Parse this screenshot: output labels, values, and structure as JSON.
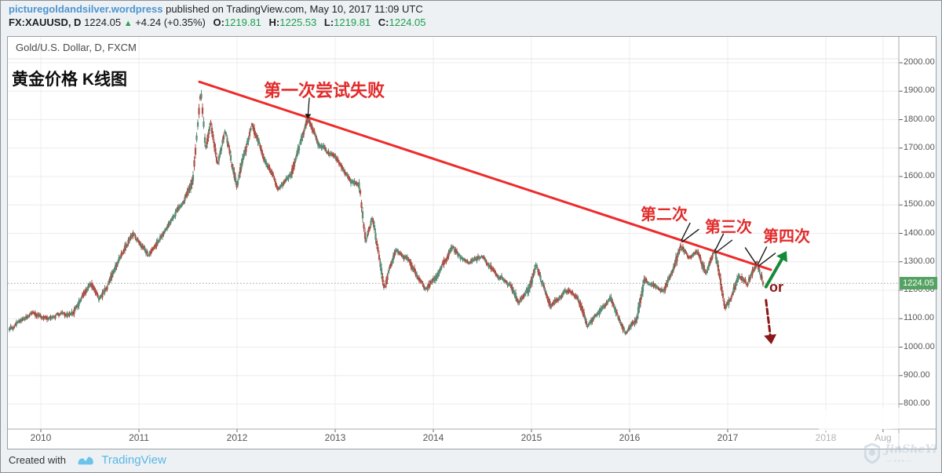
{
  "page": {
    "bg": "#edf1f4",
    "border": "#8a9097"
  },
  "header": {
    "source_link": "picturegoldandsilver.wordpress",
    "published_text": "published on TradingView.com, May 10, 2017 11:09 UTC",
    "symbol": "FX:XAUUSD, D",
    "last_price": "1224.05",
    "up_triangle": "▲",
    "change_text": "+4.24 (+0.35%)",
    "ohlc": [
      {
        "label": "O:",
        "value": "1219.81"
      },
      {
        "label": "H:",
        "value": "1225.53"
      },
      {
        "label": "L:",
        "value": "1219.81"
      },
      {
        "label": "C:",
        "value": "1224.05"
      }
    ]
  },
  "legend": "Gold/U.S. Dollar, D, FXCM",
  "chart_title": "黄金价格 K线图",
  "footer": {
    "created_with": "Created with",
    "brand": "TradingView"
  },
  "watermark": {
    "script_text": "JinSheYi",
    "sub_blocks": "—▪▪▪—"
  },
  "chart_data": {
    "type": "candlestick",
    "title": "黄金价格 K线图",
    "symbol": "Gold/U.S. Dollar (FX:XAUUSD), Daily, FXCM",
    "last_price": 1224.05,
    "last_price_label": "1224.05",
    "ylim": [
      711,
      2014
    ],
    "xlim": [
      2009.66,
      2018.74
    ],
    "grid": true,
    "y_ticks": [
      {
        "p": 2000,
        "label": "2000.00"
      },
      {
        "p": 1900,
        "label": "1900.00"
      },
      {
        "p": 1800,
        "label": "1800.00"
      },
      {
        "p": 1700,
        "label": "1700.00"
      },
      {
        "p": 1600,
        "label": "1600.00"
      },
      {
        "p": 1500,
        "label": "1500.00"
      },
      {
        "p": 1400,
        "label": "1400.00"
      },
      {
        "p": 1300,
        "label": "1300.00"
      },
      {
        "p": 1200,
        "label": "1200.00"
      },
      {
        "p": 1100,
        "label": "1100.00"
      },
      {
        "p": 1000,
        "label": "1000.00"
      },
      {
        "p": 900,
        "label": "900.00"
      },
      {
        "p": 800,
        "label": "800.00"
      }
    ],
    "x_ticks": [
      {
        "t": 2010,
        "label": "2010"
      },
      {
        "t": 2011,
        "label": "2011"
      },
      {
        "t": 2012,
        "label": "2012"
      },
      {
        "t": 2013,
        "label": "2013"
      },
      {
        "t": 2014,
        "label": "2014"
      },
      {
        "t": 2015,
        "label": "2015"
      },
      {
        "t": 2016,
        "label": "2016"
      },
      {
        "t": 2017,
        "label": "2017"
      },
      {
        "t": 2018,
        "label": "2018"
      },
      {
        "t": 2018.583,
        "label": "Aug"
      }
    ],
    "anchors": [
      [
        2009.67,
        1060
      ],
      [
        2009.92,
        1120
      ],
      [
        2010.08,
        1088
      ],
      [
        2010.2,
        1118
      ],
      [
        2010.3,
        1098
      ],
      [
        2010.5,
        1215
      ],
      [
        2010.6,
        1162
      ],
      [
        2010.8,
        1312
      ],
      [
        2010.95,
        1405
      ],
      [
        2011.1,
        1330
      ],
      [
        2011.3,
        1442
      ],
      [
        2011.45,
        1505
      ],
      [
        2011.55,
        1595
      ],
      [
        2011.63,
        1915
      ],
      [
        2011.68,
        1710
      ],
      [
        2011.73,
        1805
      ],
      [
        2011.8,
        1645
      ],
      [
        2011.88,
        1758
      ],
      [
        2012.0,
        1562
      ],
      [
        2012.15,
        1778
      ],
      [
        2012.3,
        1642
      ],
      [
        2012.42,
        1555
      ],
      [
        2012.55,
        1598
      ],
      [
        2012.72,
        1788
      ],
      [
        2012.85,
        1698
      ],
      [
        2013.0,
        1662
      ],
      [
        2013.15,
        1592
      ],
      [
        2013.25,
        1555
      ],
      [
        2013.31,
        1365
      ],
      [
        2013.38,
        1448
      ],
      [
        2013.5,
        1195
      ],
      [
        2013.62,
        1332
      ],
      [
        2013.75,
        1296
      ],
      [
        2013.92,
        1192
      ],
      [
        2014.05,
        1255
      ],
      [
        2014.2,
        1352
      ],
      [
        2014.35,
        1288
      ],
      [
        2014.5,
        1322
      ],
      [
        2014.65,
        1262
      ],
      [
        2014.78,
        1228
      ],
      [
        2014.87,
        1142
      ],
      [
        2014.97,
        1198
      ],
      [
        2015.05,
        1288
      ],
      [
        2015.2,
        1155
      ],
      [
        2015.35,
        1212
      ],
      [
        2015.48,
        1172
      ],
      [
        2015.57,
        1082
      ],
      [
        2015.8,
        1178
      ],
      [
        2015.96,
        1052
      ],
      [
        2016.07,
        1092
      ],
      [
        2016.15,
        1242
      ],
      [
        2016.25,
        1228
      ],
      [
        2016.35,
        1212
      ],
      [
        2016.45,
        1288
      ],
      [
        2016.52,
        1372
      ],
      [
        2016.6,
        1332
      ],
      [
        2016.68,
        1342
      ],
      [
        2016.78,
        1268
      ],
      [
        2016.84,
        1305
      ],
      [
        2016.87,
        1332
      ],
      [
        2016.97,
        1128
      ],
      [
        2017.04,
        1168
      ],
      [
        2017.12,
        1248
      ],
      [
        2017.2,
        1212
      ],
      [
        2017.3,
        1294
      ],
      [
        2017.37,
        1224
      ]
    ],
    "trendline": {
      "from": [
        2011.616,
        1933
      ],
      "to": [
        2017.44,
        1272
      ],
      "color": "#ee2b2b"
    },
    "annotations": [
      {
        "id": "attempt1",
        "text": "第一次尝试失败",
        "kind": "label-arrow",
        "t": 2012.72,
        "p": 1795
      },
      {
        "id": "attempt2",
        "text": "第二次",
        "kind": "label-ticks",
        "t": 2016.52,
        "p": 1378
      },
      {
        "id": "attempt3",
        "text": "第三次",
        "kind": "label-ticks",
        "t": 2016.86,
        "p": 1340
      },
      {
        "id": "attempt4",
        "text": "第四次",
        "kind": "label-ticks",
        "t": 2017.3,
        "p": 1294,
        "extra": true
      },
      {
        "id": "or-label",
        "text": "or",
        "kind": "label",
        "t": 2017.42,
        "p": 1210
      },
      {
        "id": "breakout-up",
        "kind": "arrow",
        "style": "solid",
        "color": "#168a38",
        "from": [
          2017.39,
          1212
        ],
        "to": [
          2017.6,
          1338
        ]
      },
      {
        "id": "breakdown",
        "kind": "arrow",
        "style": "dashed",
        "color": "#8b1717",
        "from": [
          2017.39,
          1165
        ],
        "to": [
          2017.445,
          1010
        ]
      }
    ],
    "colors": {
      "up": "#5d8a74",
      "down": "#a85248",
      "grid": "#ececec",
      "axis_text": "#555555",
      "badge": "#55a263",
      "dotted_line": "#8fa89b"
    }
  }
}
